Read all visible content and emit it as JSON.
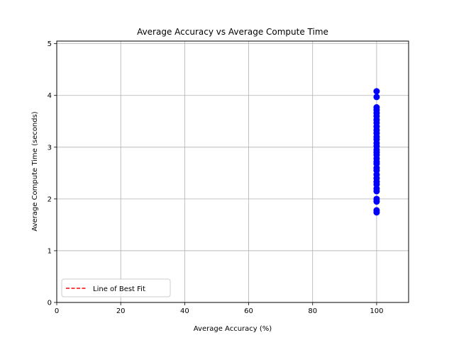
{
  "chart_data": {
    "type": "scatter",
    "title": "Average Accuracy vs Average Compute Time",
    "xlabel": "Average Accuracy (%)",
    "ylabel": "Average Compute Time (seconds)",
    "xlim": [
      0,
      110
    ],
    "ylim": [
      0,
      5.05
    ],
    "xticks": [
      "0",
      "20",
      "40",
      "60",
      "80",
      "100"
    ],
    "xtick_values": [
      0,
      20,
      40,
      60,
      80,
      100
    ],
    "yticks": [
      "0",
      "1",
      "2",
      "3",
      "4",
      "5"
    ],
    "ytick_values": [
      0,
      1,
      2,
      3,
      4,
      5
    ],
    "grid": true,
    "legend": {
      "placement": "lower-left",
      "entries": [
        "Line of Best Fit"
      ]
    },
    "colors": {
      "points": "#0000ff",
      "fit_line": "#ff0000"
    },
    "series": [
      {
        "values": [
          [
            100,
            1.74
          ],
          [
            100,
            1.78
          ],
          [
            100,
            1.95
          ],
          [
            100,
            2.0
          ],
          [
            100,
            2.15
          ],
          [
            100,
            2.2
          ],
          [
            100,
            2.28
          ],
          [
            100,
            2.33
          ],
          [
            100,
            2.4
          ],
          [
            100,
            2.47
          ],
          [
            100,
            2.55
          ],
          [
            100,
            2.6
          ],
          [
            100,
            2.68
          ],
          [
            100,
            2.72
          ],
          [
            100,
            2.78
          ],
          [
            100,
            2.85
          ],
          [
            100,
            2.9
          ],
          [
            100,
            2.95
          ],
          [
            100,
            3.02
          ],
          [
            100,
            3.08
          ],
          [
            100,
            3.15
          ],
          [
            100,
            3.2
          ],
          [
            100,
            3.27
          ],
          [
            100,
            3.33
          ],
          [
            100,
            3.4
          ],
          [
            100,
            3.47
          ],
          [
            100,
            3.53
          ],
          [
            100,
            3.6
          ],
          [
            100,
            3.66
          ],
          [
            100,
            3.72
          ],
          [
            100,
            3.77
          ],
          [
            100,
            3.97
          ],
          [
            100,
            4.08
          ]
        ]
      }
    ]
  }
}
